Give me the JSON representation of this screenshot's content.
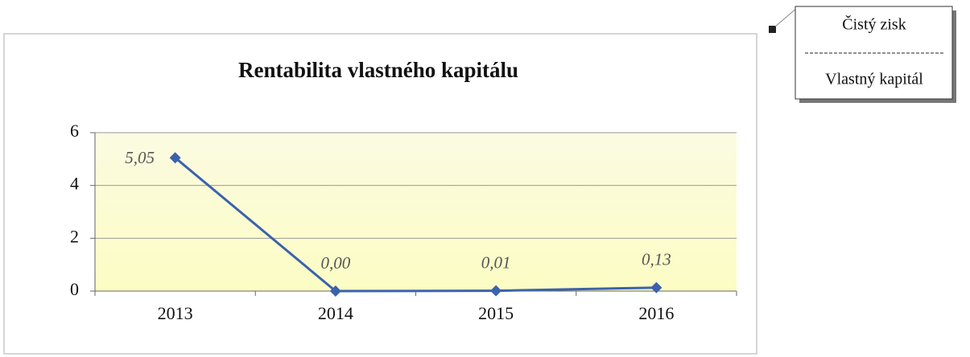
{
  "chart_data": {
    "type": "line",
    "title": "Rentabilita vlastného kapitálu",
    "categories": [
      "2013",
      "2014",
      "2015",
      "2016"
    ],
    "values": [
      5.05,
      0,
      0.01,
      0.13
    ],
    "value_labels": [
      "5,05",
      "0,00",
      "0,01",
      "0,13"
    ],
    "color": "#3a62ad",
    "ylim": [
      0,
      6
    ],
    "yticks": [
      0,
      2,
      4,
      6
    ],
    "grid": true
  },
  "formula": {
    "numerator": "Čistý zisk",
    "denominator": "Vlastný kapitál"
  }
}
